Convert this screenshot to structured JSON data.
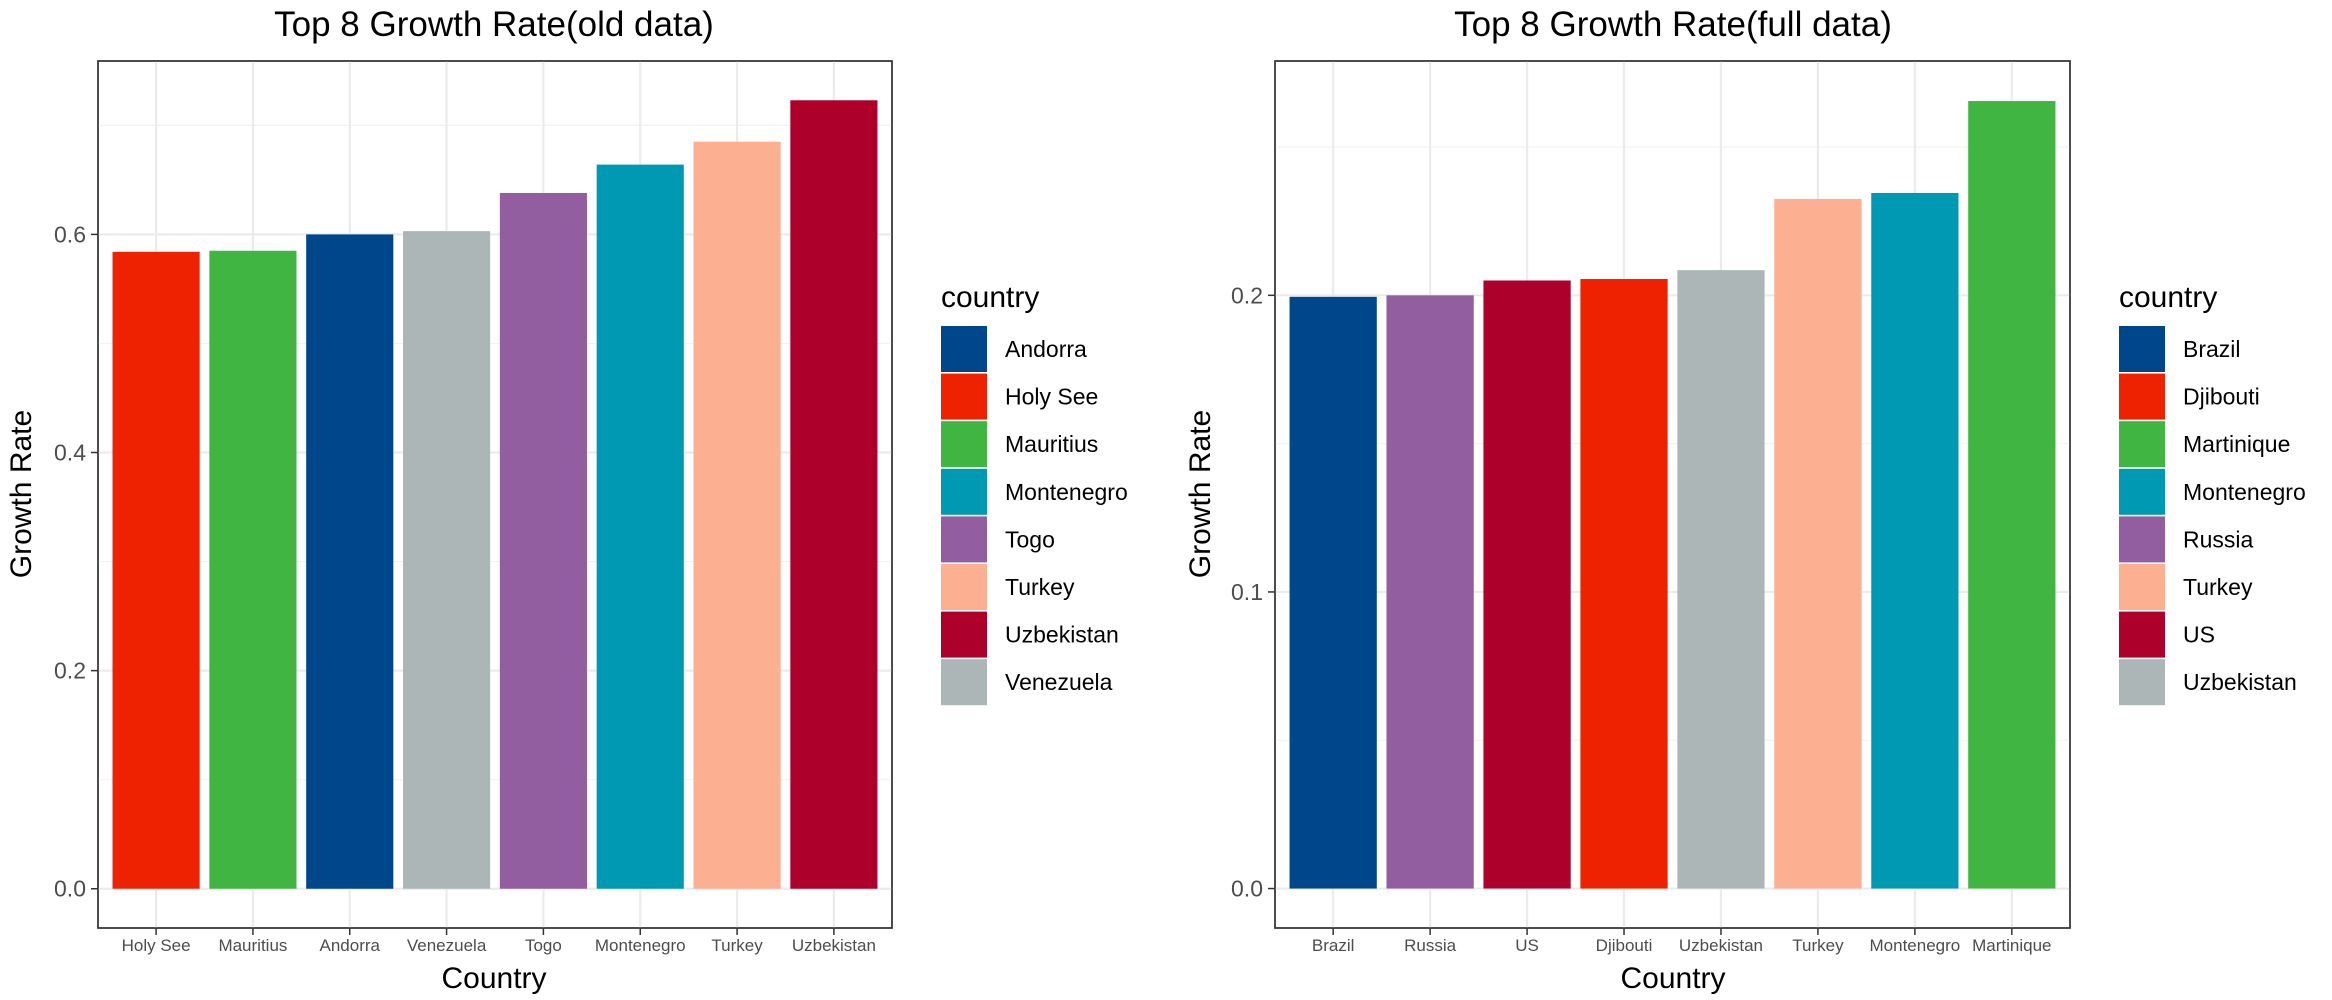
{
  "chart_data": [
    {
      "type": "bar",
      "title": "Top 8 Growth Rate(old data)",
      "xlabel": "Country",
      "ylabel": "Growth Rate",
      "categories": [
        "Holy See",
        "Mauritius",
        "Andorra",
        "Venezuela",
        "Togo",
        "Montenegro",
        "Turkey",
        "Uzbekistan"
      ],
      "values": [
        0.584,
        0.585,
        0.6,
        0.603,
        0.638,
        0.664,
        0.685,
        0.723
      ],
      "colors": [
        "#EE2200",
        "#41B541",
        "#00468B",
        "#ADB6B6",
        "#925E9F",
        "#0099B4",
        "#FDAF91",
        "#AD002A"
      ],
      "ylim": [
        -0.036,
        0.759
      ],
      "yticks": [
        0.0,
        0.2,
        0.4,
        0.6
      ],
      "ytick_labels": [
        "0.0",
        "0.2",
        "0.4",
        "0.6"
      ],
      "grid": true,
      "legend": {
        "title": "country",
        "position": "right",
        "items": [
          {
            "label": "Andorra",
            "color": "#00468B"
          },
          {
            "label": "Holy See",
            "color": "#EE2200"
          },
          {
            "label": "Mauritius",
            "color": "#41B541"
          },
          {
            "label": "Montenegro",
            "color": "#0099B4"
          },
          {
            "label": "Togo",
            "color": "#925E9F"
          },
          {
            "label": "Turkey",
            "color": "#FDAF91"
          },
          {
            "label": "Uzbekistan",
            "color": "#AD002A"
          },
          {
            "label": "Venezuela",
            "color": "#ADB6B6"
          }
        ]
      }
    },
    {
      "type": "bar",
      "title": "Top 8 Growth Rate(full data)",
      "xlabel": "Country",
      "ylabel": "Growth Rate",
      "categories": [
        "Brazil",
        "Russia",
        "US",
        "Djibouti",
        "Uzbekistan",
        "Turkey",
        "Montenegro",
        "Martinique"
      ],
      "values": [
        0.1995,
        0.2,
        0.205,
        0.2055,
        0.2085,
        0.2325,
        0.2345,
        0.2655
      ],
      "colors": [
        "#00468B",
        "#925E9F",
        "#AD002A",
        "#EE2200",
        "#ADB6B6",
        "#FDAF91",
        "#0099B4",
        "#41B541"
      ],
      "ylim": [
        -0.0133,
        0.279
      ],
      "yticks": [
        0.0,
        0.1,
        0.2
      ],
      "ytick_labels": [
        "0.0",
        "0.1",
        "0.2"
      ],
      "grid": true,
      "legend": {
        "title": "country",
        "position": "right",
        "items": [
          {
            "label": "Brazil",
            "color": "#00468B"
          },
          {
            "label": "Djibouti",
            "color": "#EE2200"
          },
          {
            "label": "Martinique",
            "color": "#41B541"
          },
          {
            "label": "Montenegro",
            "color": "#0099B4"
          },
          {
            "label": "Russia",
            "color": "#925E9F"
          },
          {
            "label": "Turkey",
            "color": "#FDAF91"
          },
          {
            "label": "US",
            "color": "#AD002A"
          },
          {
            "label": "Uzbekistan",
            "color": "#ADB6B6"
          }
        ]
      }
    }
  ]
}
